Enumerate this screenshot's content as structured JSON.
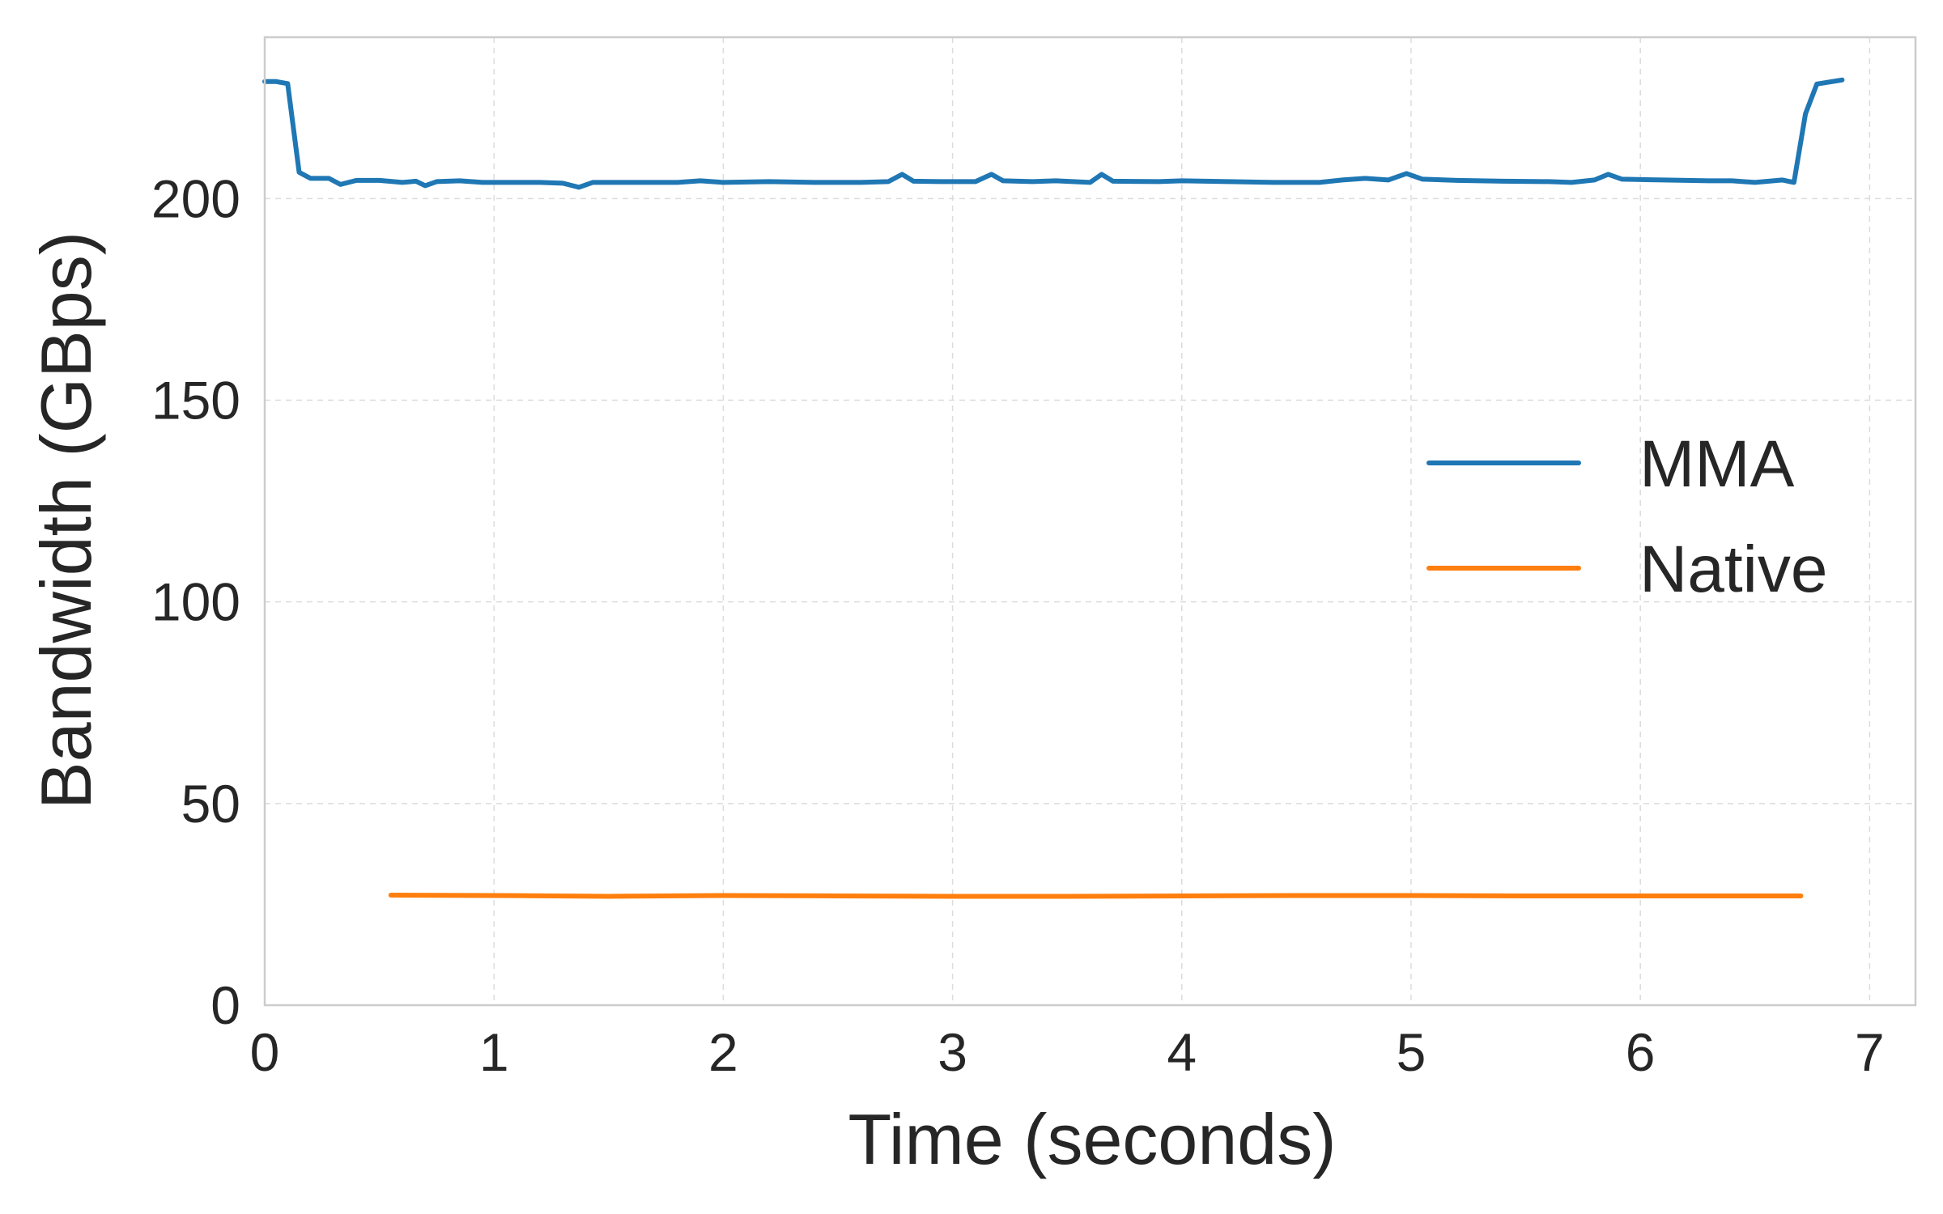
{
  "chart_data": {
    "type": "line",
    "xlabel": "Time (seconds)",
    "ylabel": "Bandwidth (GBps)",
    "xlim": [
      0,
      7.2
    ],
    "ylim": [
      0,
      240
    ],
    "xticks": [
      0,
      1,
      2,
      3,
      4,
      5,
      6,
      7
    ],
    "yticks": [
      0,
      50,
      100,
      150,
      200
    ],
    "grid": true,
    "legend_position": "center-right",
    "series": [
      {
        "name": "MMA",
        "color": "#1f77b4",
        "points": [
          [
            0.0,
            229
          ],
          [
            0.05,
            229
          ],
          [
            0.1,
            228.5
          ],
          [
            0.15,
            206.5
          ],
          [
            0.2,
            205
          ],
          [
            0.28,
            205
          ],
          [
            0.33,
            203.5
          ],
          [
            0.4,
            204.5
          ],
          [
            0.5,
            204.5
          ],
          [
            0.6,
            204
          ],
          [
            0.66,
            204.3
          ],
          [
            0.7,
            203.2
          ],
          [
            0.75,
            204.2
          ],
          [
            0.85,
            204.4
          ],
          [
            0.95,
            204
          ],
          [
            1.1,
            204
          ],
          [
            1.2,
            204
          ],
          [
            1.3,
            203.8
          ],
          [
            1.37,
            202.8
          ],
          [
            1.43,
            204
          ],
          [
            1.6,
            204
          ],
          [
            1.8,
            204
          ],
          [
            1.9,
            204.4
          ],
          [
            2.0,
            204
          ],
          [
            2.2,
            204.2
          ],
          [
            2.4,
            204
          ],
          [
            2.6,
            204
          ],
          [
            2.72,
            204.2
          ],
          [
            2.78,
            206
          ],
          [
            2.83,
            204.3
          ],
          [
            2.95,
            204.2
          ],
          [
            3.1,
            204.2
          ],
          [
            3.17,
            206
          ],
          [
            3.22,
            204.4
          ],
          [
            3.35,
            204.2
          ],
          [
            3.45,
            204.4
          ],
          [
            3.6,
            204
          ],
          [
            3.65,
            206
          ],
          [
            3.7,
            204.3
          ],
          [
            3.9,
            204.2
          ],
          [
            4.0,
            204.4
          ],
          [
            4.2,
            204.2
          ],
          [
            4.4,
            204
          ],
          [
            4.6,
            204
          ],
          [
            4.7,
            204.6
          ],
          [
            4.8,
            205
          ],
          [
            4.9,
            204.6
          ],
          [
            4.98,
            206.2
          ],
          [
            5.05,
            204.8
          ],
          [
            5.2,
            204.5
          ],
          [
            5.4,
            204.3
          ],
          [
            5.6,
            204.2
          ],
          [
            5.7,
            204
          ],
          [
            5.8,
            204.6
          ],
          [
            5.86,
            206
          ],
          [
            5.92,
            204.8
          ],
          [
            6.1,
            204.6
          ],
          [
            6.3,
            204.4
          ],
          [
            6.4,
            204.4
          ],
          [
            6.5,
            204
          ],
          [
            6.62,
            204.6
          ],
          [
            6.67,
            204
          ],
          [
            6.72,
            221
          ],
          [
            6.77,
            228.4
          ],
          [
            6.88,
            229.4
          ]
        ]
      },
      {
        "name": "Native",
        "color": "#ff7f0e",
        "points": [
          [
            0.55,
            27.3
          ],
          [
            1.0,
            27.2
          ],
          [
            1.5,
            27.0
          ],
          [
            2.0,
            27.2
          ],
          [
            2.5,
            27.1
          ],
          [
            3.0,
            27.0
          ],
          [
            3.5,
            27.0
          ],
          [
            4.0,
            27.1
          ],
          [
            4.5,
            27.2
          ],
          [
            5.0,
            27.2
          ],
          [
            5.5,
            27.1
          ],
          [
            6.0,
            27.1
          ],
          [
            6.5,
            27.1
          ],
          [
            6.7,
            27.1
          ]
        ]
      }
    ]
  }
}
